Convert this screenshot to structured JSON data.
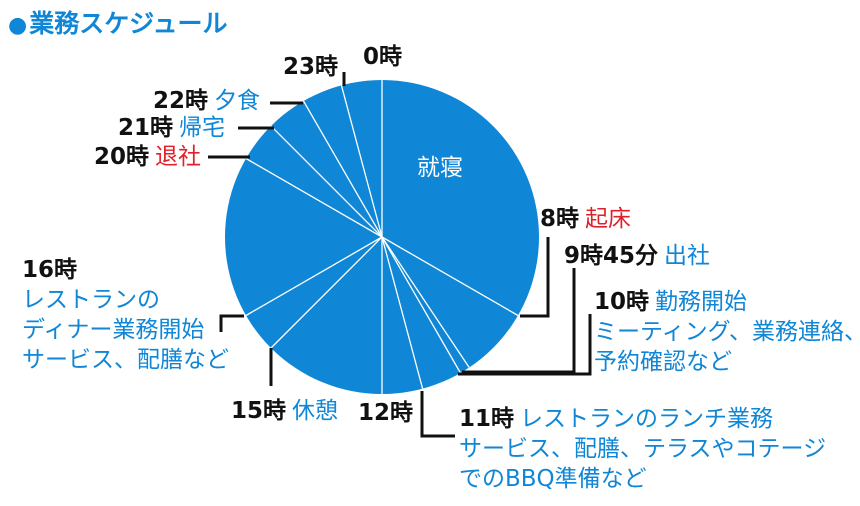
{
  "title": "業務スケジュール",
  "colors": {
    "accent": "#0f86d6",
    "pie": "#0f86d6",
    "highlight": "#e0202a",
    "text": "#111111"
  },
  "slice_label": "就寝",
  "labels": {
    "h0": {
      "time": "0時",
      "activity": ""
    },
    "h23": {
      "time": "23時",
      "activity": ""
    },
    "h22": {
      "time": "22時",
      "activity": "夕食"
    },
    "h21": {
      "time": "21時",
      "activity": "帰宅"
    },
    "h20": {
      "time": "20時",
      "activity": "退社"
    },
    "h8": {
      "time": "8時",
      "activity": "起床"
    },
    "h945": {
      "time": "9時45分",
      "activity": "出社"
    },
    "h10": {
      "time": "10時",
      "activity": [
        "勤務開始",
        "ミーティング、業務連絡、",
        "予約確認など"
      ]
    },
    "h16": {
      "time": "16時",
      "activity": [
        "レストランの",
        "ディナー業務開始",
        "サービス、配膳など"
      ]
    },
    "h15": {
      "time": "15時",
      "activity": "休憩"
    },
    "h12": {
      "time": "12時",
      "activity": ""
    },
    "h11": {
      "time": "11時",
      "activity": [
        "レストランのランチ業務",
        "サービス、配膳、テラスやコテージ",
        "でのBBQ準備など"
      ]
    }
  },
  "chart_data": {
    "type": "pie",
    "boundaries_hours": [
      0,
      8,
      9.75,
      10,
      11,
      12,
      15,
      16,
      20,
      21,
      22,
      23
    ]
  }
}
